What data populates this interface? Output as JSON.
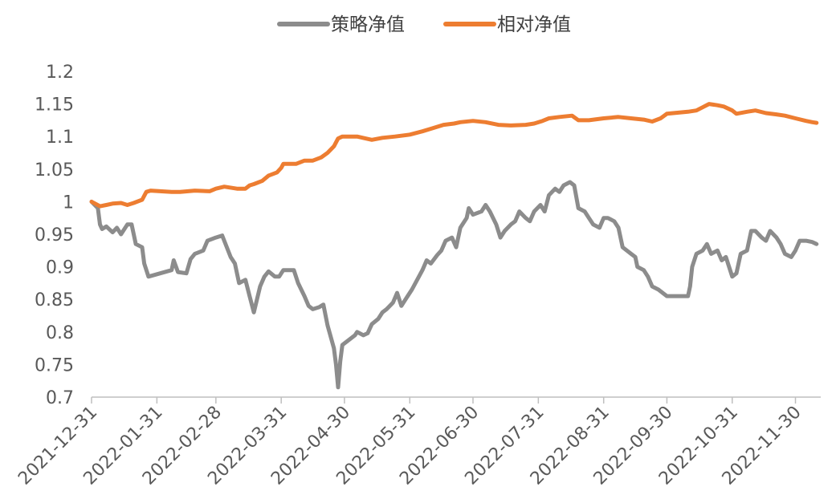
{
  "chart_data": {
    "type": "line",
    "title": "",
    "xlabel": "",
    "ylabel": "",
    "ylim": [
      0.7,
      1.2
    ],
    "y_ticks": [
      "1.2",
      "1.15",
      "1.1",
      "1.05",
      "1",
      "0.95",
      "0.9",
      "0.85",
      "0.8",
      "0.75",
      "0.7"
    ],
    "x_ticks": [
      "2021-12-31",
      "2022-01-31",
      "2022-02-28",
      "2022-03-31",
      "2022-04-30",
      "2022-05-31",
      "2022-06-30",
      "2022-07-31",
      "2022-08-31",
      "2022-09-30",
      "2022-10-31",
      "2022-11-30"
    ],
    "x_range": [
      "2021-12-31",
      "2022-12-12"
    ],
    "legend_position": "top",
    "grid": false,
    "series": [
      {
        "name": "策略净值",
        "color": "#8c8c8c",
        "points": [
          [
            "2021-12-31",
            1.0
          ],
          [
            "2022-01-03",
            0.99
          ],
          [
            "2022-01-04",
            0.965
          ],
          [
            "2022-01-05",
            0.958
          ],
          [
            "2022-01-07",
            0.962
          ],
          [
            "2022-01-10",
            0.953
          ],
          [
            "2022-01-12",
            0.96
          ],
          [
            "2022-01-14",
            0.95
          ],
          [
            "2022-01-17",
            0.965
          ],
          [
            "2022-01-19",
            0.965
          ],
          [
            "2022-01-21",
            0.935
          ],
          [
            "2022-01-24",
            0.93
          ],
          [
            "2022-01-25",
            0.905
          ],
          [
            "2022-01-27",
            0.885
          ],
          [
            "2022-02-07",
            0.895
          ],
          [
            "2022-02-08",
            0.91
          ],
          [
            "2022-02-10",
            0.892
          ],
          [
            "2022-02-14",
            0.89
          ],
          [
            "2022-02-16",
            0.912
          ],
          [
            "2022-02-18",
            0.92
          ],
          [
            "2022-02-22",
            0.925
          ],
          [
            "2022-02-24",
            0.94
          ],
          [
            "2022-02-28",
            0.945
          ],
          [
            "2022-03-03",
            0.948
          ],
          [
            "2022-03-07",
            0.915
          ],
          [
            "2022-03-09",
            0.905
          ],
          [
            "2022-03-11",
            0.875
          ],
          [
            "2022-03-14",
            0.88
          ],
          [
            "2022-03-16",
            0.855
          ],
          [
            "2022-03-18",
            0.83
          ],
          [
            "2022-03-21",
            0.87
          ],
          [
            "2022-03-23",
            0.885
          ],
          [
            "2022-03-25",
            0.893
          ],
          [
            "2022-03-28",
            0.885
          ],
          [
            "2022-03-30",
            0.885
          ],
          [
            "2022-04-01",
            0.895
          ],
          [
            "2022-04-06",
            0.895
          ],
          [
            "2022-04-08",
            0.875
          ],
          [
            "2022-04-11",
            0.855
          ],
          [
            "2022-04-13",
            0.84
          ],
          [
            "2022-04-15",
            0.835
          ],
          [
            "2022-04-18",
            0.838
          ],
          [
            "2022-04-20",
            0.842
          ],
          [
            "2022-04-22",
            0.81
          ],
          [
            "2022-04-25",
            0.775
          ],
          [
            "2022-04-26",
            0.75
          ],
          [
            "2022-04-27",
            0.715
          ],
          [
            "2022-04-28",
            0.755
          ],
          [
            "2022-04-29",
            0.78
          ],
          [
            "2022-05-05",
            0.795
          ],
          [
            "2022-05-06",
            0.8
          ],
          [
            "2022-05-09",
            0.795
          ],
          [
            "2022-05-11",
            0.798
          ],
          [
            "2022-05-13",
            0.812
          ],
          [
            "2022-05-16",
            0.82
          ],
          [
            "2022-05-18",
            0.83
          ],
          [
            "2022-05-20",
            0.835
          ],
          [
            "2022-05-23",
            0.845
          ],
          [
            "2022-05-25",
            0.86
          ],
          [
            "2022-05-27",
            0.84
          ],
          [
            "2022-05-30",
            0.855
          ],
          [
            "2022-06-01",
            0.865
          ],
          [
            "2022-06-06",
            0.895
          ],
          [
            "2022-06-08",
            0.91
          ],
          [
            "2022-06-10",
            0.905
          ],
          [
            "2022-06-13",
            0.918
          ],
          [
            "2022-06-15",
            0.925
          ],
          [
            "2022-06-17",
            0.94
          ],
          [
            "2022-06-20",
            0.945
          ],
          [
            "2022-06-22",
            0.93
          ],
          [
            "2022-06-24",
            0.96
          ],
          [
            "2022-06-27",
            0.975
          ],
          [
            "2022-06-28",
            0.99
          ],
          [
            "2022-06-30",
            0.98
          ],
          [
            "2022-07-04",
            0.985
          ],
          [
            "2022-07-06",
            0.995
          ],
          [
            "2022-07-08",
            0.985
          ],
          [
            "2022-07-11",
            0.965
          ],
          [
            "2022-07-13",
            0.945
          ],
          [
            "2022-07-15",
            0.955
          ],
          [
            "2022-07-18",
            0.965
          ],
          [
            "2022-07-20",
            0.97
          ],
          [
            "2022-07-22",
            0.985
          ],
          [
            "2022-07-25",
            0.975
          ],
          [
            "2022-07-27",
            0.97
          ],
          [
            "2022-07-29",
            0.985
          ],
          [
            "2022-08-01",
            0.995
          ],
          [
            "2022-08-03",
            0.985
          ],
          [
            "2022-08-05",
            1.01
          ],
          [
            "2022-08-08",
            1.02
          ],
          [
            "2022-08-10",
            1.015
          ],
          [
            "2022-08-12",
            1.025
          ],
          [
            "2022-08-15",
            1.03
          ],
          [
            "2022-08-17",
            1.025
          ],
          [
            "2022-08-19",
            0.99
          ],
          [
            "2022-08-22",
            0.985
          ],
          [
            "2022-08-24",
            0.975
          ],
          [
            "2022-08-26",
            0.965
          ],
          [
            "2022-08-29",
            0.96
          ],
          [
            "2022-08-31",
            0.975
          ],
          [
            "2022-09-02",
            0.975
          ],
          [
            "2022-09-05",
            0.97
          ],
          [
            "2022-09-07",
            0.96
          ],
          [
            "2022-09-09",
            0.93
          ],
          [
            "2022-09-13",
            0.92
          ],
          [
            "2022-09-15",
            0.915
          ],
          [
            "2022-09-16",
            0.9
          ],
          [
            "2022-09-19",
            0.895
          ],
          [
            "2022-09-21",
            0.885
          ],
          [
            "2022-09-23",
            0.87
          ],
          [
            "2022-09-26",
            0.865
          ],
          [
            "2022-09-28",
            0.86
          ],
          [
            "2022-09-30",
            0.855
          ],
          [
            "2022-10-10",
            0.855
          ],
          [
            "2022-10-11",
            0.87
          ],
          [
            "2022-10-12",
            0.9
          ],
          [
            "2022-10-14",
            0.92
          ],
          [
            "2022-10-17",
            0.925
          ],
          [
            "2022-10-19",
            0.935
          ],
          [
            "2022-10-21",
            0.92
          ],
          [
            "2022-10-24",
            0.925
          ],
          [
            "2022-10-26",
            0.91
          ],
          [
            "2022-10-28",
            0.915
          ],
          [
            "2022-10-31",
            0.885
          ],
          [
            "2022-11-02",
            0.89
          ],
          [
            "2022-11-04",
            0.92
          ],
          [
            "2022-11-07",
            0.925
          ],
          [
            "2022-11-09",
            0.955
          ],
          [
            "2022-11-11",
            0.955
          ],
          [
            "2022-11-14",
            0.945
          ],
          [
            "2022-11-16",
            0.94
          ],
          [
            "2022-11-18",
            0.955
          ],
          [
            "2022-11-21",
            0.945
          ],
          [
            "2022-11-23",
            0.935
          ],
          [
            "2022-11-25",
            0.92
          ],
          [
            "2022-11-28",
            0.915
          ],
          [
            "2022-11-30",
            0.925
          ],
          [
            "2022-12-02",
            0.94
          ],
          [
            "2022-12-05",
            0.94
          ],
          [
            "2022-12-08",
            0.938
          ],
          [
            "2022-12-10",
            0.935
          ]
        ]
      },
      {
        "name": "相对净值",
        "color": "#ed7d31",
        "points": [
          [
            "2021-12-31",
            1.0
          ],
          [
            "2022-01-04",
            0.993
          ],
          [
            "2022-01-07",
            0.995
          ],
          [
            "2022-01-10",
            0.997
          ],
          [
            "2022-01-14",
            0.998
          ],
          [
            "2022-01-17",
            0.995
          ],
          [
            "2022-01-20",
            0.998
          ],
          [
            "2022-01-24",
            1.003
          ],
          [
            "2022-01-26",
            1.015
          ],
          [
            "2022-01-28",
            1.017
          ],
          [
            "2022-02-07",
            1.015
          ],
          [
            "2022-02-11",
            1.015
          ],
          [
            "2022-02-18",
            1.017
          ],
          [
            "2022-02-25",
            1.016
          ],
          [
            "2022-02-28",
            1.02
          ],
          [
            "2022-03-04",
            1.023
          ],
          [
            "2022-03-10",
            1.02
          ],
          [
            "2022-03-14",
            1.02
          ],
          [
            "2022-03-16",
            1.025
          ],
          [
            "2022-03-18",
            1.027
          ],
          [
            "2022-03-22",
            1.032
          ],
          [
            "2022-03-25",
            1.04
          ],
          [
            "2022-03-29",
            1.045
          ],
          [
            "2022-03-31",
            1.052
          ],
          [
            "2022-04-01",
            1.058
          ],
          [
            "2022-04-07",
            1.058
          ],
          [
            "2022-04-11",
            1.063
          ],
          [
            "2022-04-15",
            1.063
          ],
          [
            "2022-04-19",
            1.068
          ],
          [
            "2022-04-22",
            1.075
          ],
          [
            "2022-04-25",
            1.085
          ],
          [
            "2022-04-27",
            1.097
          ],
          [
            "2022-04-29",
            1.1
          ],
          [
            "2022-05-06",
            1.1
          ],
          [
            "2022-05-10",
            1.097
          ],
          [
            "2022-05-13",
            1.095
          ],
          [
            "2022-05-18",
            1.098
          ],
          [
            "2022-05-24",
            1.1
          ],
          [
            "2022-05-31",
            1.103
          ],
          [
            "2022-06-06",
            1.108
          ],
          [
            "2022-06-10",
            1.112
          ],
          [
            "2022-06-16",
            1.118
          ],
          [
            "2022-06-21",
            1.12
          ],
          [
            "2022-06-24",
            1.122
          ],
          [
            "2022-06-30",
            1.124
          ],
          [
            "2022-07-06",
            1.122
          ],
          [
            "2022-07-12",
            1.118
          ],
          [
            "2022-07-18",
            1.117
          ],
          [
            "2022-07-25",
            1.118
          ],
          [
            "2022-07-29",
            1.12
          ],
          [
            "2022-08-02",
            1.124
          ],
          [
            "2022-08-05",
            1.128
          ],
          [
            "2022-08-10",
            1.13
          ],
          [
            "2022-08-16",
            1.132
          ],
          [
            "2022-08-19",
            1.125
          ],
          [
            "2022-08-24",
            1.125
          ],
          [
            "2022-08-31",
            1.128
          ],
          [
            "2022-09-07",
            1.13
          ],
          [
            "2022-09-13",
            1.128
          ],
          [
            "2022-09-19",
            1.126
          ],
          [
            "2022-09-23",
            1.123
          ],
          [
            "2022-09-27",
            1.128
          ],
          [
            "2022-09-30",
            1.135
          ],
          [
            "2022-10-10",
            1.138
          ],
          [
            "2022-10-14",
            1.14
          ],
          [
            "2022-10-17",
            1.145
          ],
          [
            "2022-10-20",
            1.15
          ],
          [
            "2022-10-24",
            1.148
          ],
          [
            "2022-10-27",
            1.146
          ],
          [
            "2022-10-31",
            1.14
          ],
          [
            "2022-11-02",
            1.135
          ],
          [
            "2022-11-07",
            1.138
          ],
          [
            "2022-11-11",
            1.14
          ],
          [
            "2022-11-16",
            1.136
          ],
          [
            "2022-11-21",
            1.134
          ],
          [
            "2022-11-25",
            1.132
          ],
          [
            "2022-11-30",
            1.128
          ],
          [
            "2022-12-05",
            1.124
          ],
          [
            "2022-12-08",
            1.122
          ],
          [
            "2022-12-10",
            1.121
          ]
        ]
      }
    ]
  }
}
